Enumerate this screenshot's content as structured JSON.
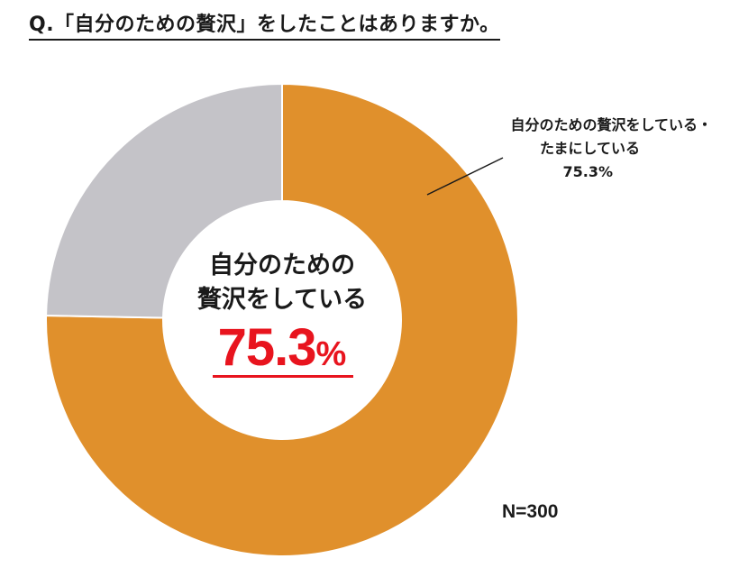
{
  "title": "Q.「自分のための贅沢」をしたことはありますか。",
  "chart_data": {
    "type": "pie",
    "style": "donut",
    "slices": [
      {
        "label_lines": [
          "自分のための贅沢をしている・",
          "たまにしている",
          "75.3%"
        ],
        "value": 75.3,
        "color": "#e0902c"
      },
      {
        "value": 24.7,
        "color": "#c4c3c8"
      }
    ],
    "center": {
      "line1": "自分のための",
      "line2": "贅沢をしている",
      "value": "75.3",
      "unit": "%",
      "value_color": "#e8141e"
    },
    "n_label": "N=300"
  }
}
